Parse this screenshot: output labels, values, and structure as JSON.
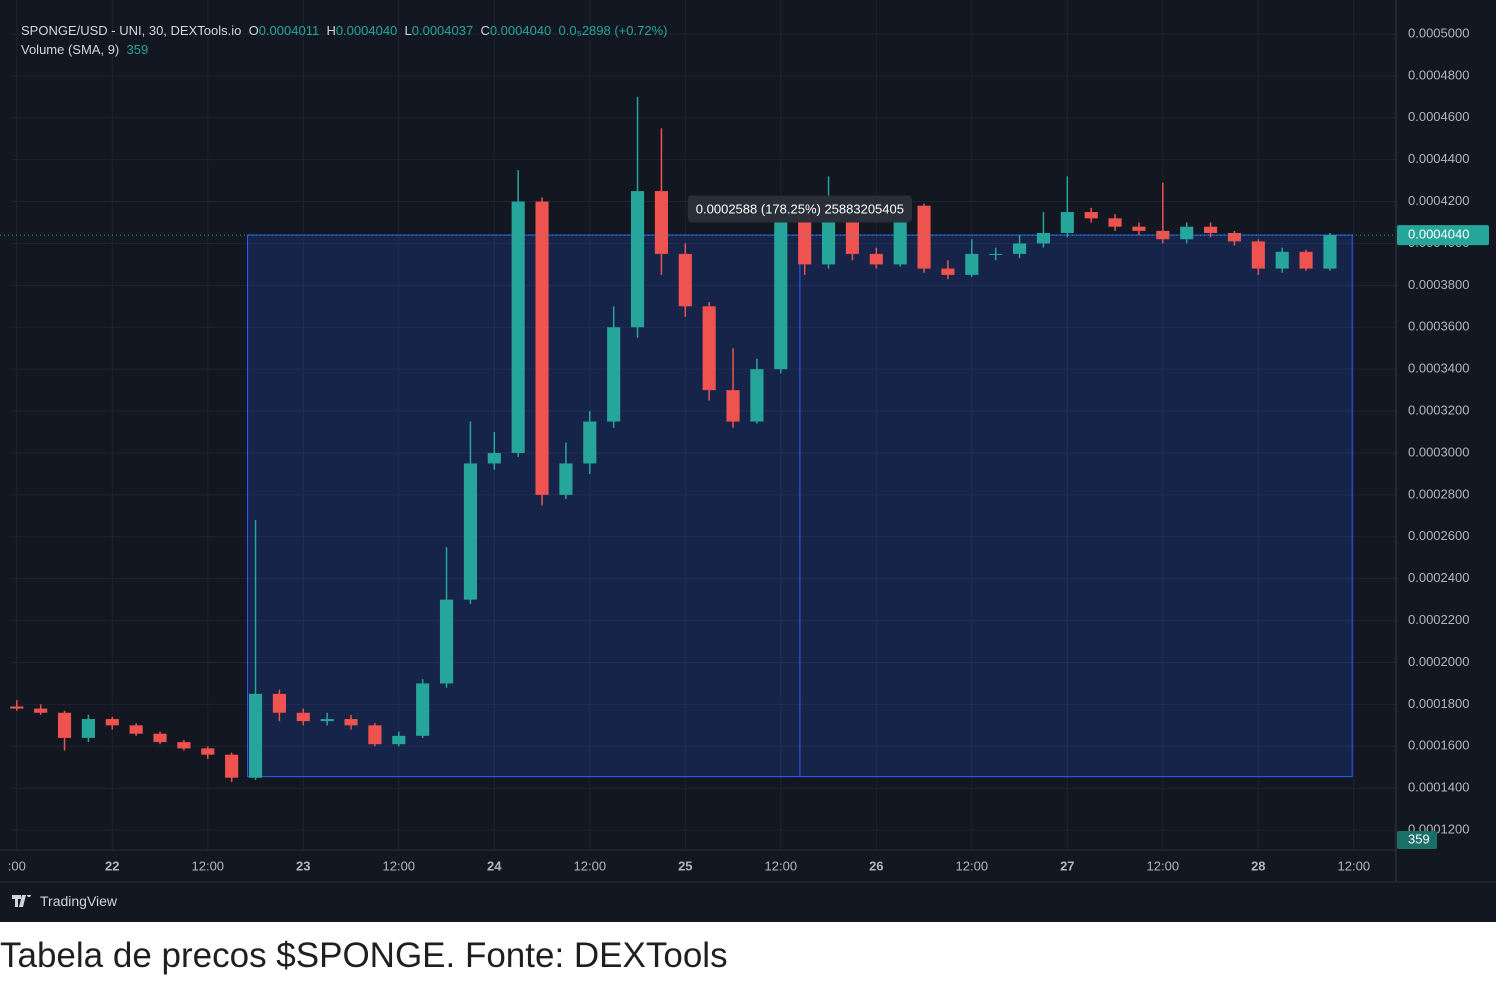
{
  "chart_data": {
    "type": "candlestick",
    "title": "SPONGE/USD - UNI, 30, DEXTools.io",
    "ohlc_labels": [
      {
        "key": "O",
        "value": "0.0004011"
      },
      {
        "key": "H",
        "value": "0.0004040"
      },
      {
        "key": "L",
        "value": "0.0004037"
      },
      {
        "key": "C",
        "value": "0.0004040"
      }
    ],
    "change": "0.0₅2898 (+0.72%)",
    "volume_label": "Volume (SMA, 9)",
    "volume_value": "359",
    "up_color": "#26a69a",
    "down_color": "#ef5350",
    "x": [
      -12,
      -9,
      -6,
      -3,
      0,
      3,
      6,
      9,
      12,
      15,
      18,
      21,
      24,
      27,
      30,
      33,
      36,
      39,
      42,
      45,
      48,
      51,
      54,
      57,
      60,
      63,
      66,
      69,
      72,
      75,
      78,
      81,
      84,
      87,
      90,
      93,
      96,
      99,
      102,
      105,
      108,
      111,
      114,
      117,
      120,
      123,
      126,
      129,
      132,
      135,
      138,
      141,
      144,
      147,
      150,
      153
    ],
    "open": [
      0.000179,
      0.000178,
      0.000176,
      0.000164,
      0.000173,
      0.00017,
      0.000166,
      0.000162,
      0.000159,
      0.000156,
      0.000145,
      0.000185,
      0.000176,
      0.000172,
      0.000173,
      0.00017,
      0.000161,
      0.000165,
      0.00019,
      0.00023,
      0.000295,
      0.0003,
      0.00042,
      0.00028,
      0.000295,
      0.000315,
      0.00036,
      0.000425,
      0.000395,
      0.00037,
      0.00033,
      0.000315,
      0.00034,
      0.000415,
      0.00039,
      0.00042,
      0.000395,
      0.00039,
      0.000418,
      0.000388,
      0.000385,
      0.000395,
      0.000395,
      0.0004,
      0.000405,
      0.000415,
      0.000412,
      0.000408,
      0.000406,
      0.000402,
      0.000408,
      0.000405,
      0.000401,
      0.000388,
      0.000396,
      0.000388
    ],
    "high": [
      0.000182,
      0.00018,
      0.000177,
      0.000175,
      0.000174,
      0.000171,
      0.000167,
      0.000163,
      0.00016,
      0.000157,
      0.000268,
      0.000187,
      0.000178,
      0.000176,
      0.000175,
      0.000171,
      0.000167,
      0.000192,
      0.000255,
      0.000315,
      0.00031,
      0.000435,
      0.000422,
      0.000305,
      0.00032,
      0.00037,
      0.00047,
      0.000455,
      0.0004,
      0.000372,
      0.00035,
      0.000345,
      0.00042,
      0.000418,
      0.000432,
      0.000422,
      0.000398,
      0.00042,
      0.000419,
      0.000392,
      0.000402,
      0.000398,
      0.000404,
      0.000415,
      0.000432,
      0.000417,
      0.000414,
      0.00041,
      0.000429,
      0.00041,
      0.00041,
      0.000406,
      0.000402,
      0.000398,
      0.000397,
      0.000405
    ],
    "low": [
      0.000177,
      0.000175,
      0.000158,
      0.000162,
      0.000168,
      0.000165,
      0.000161,
      0.000158,
      0.000154,
      0.000143,
      0.000144,
      0.000172,
      0.00017,
      0.00017,
      0.000168,
      0.00016,
      0.00016,
      0.000164,
      0.000188,
      0.000228,
      0.000292,
      0.000298,
      0.000275,
      0.000278,
      0.00029,
      0.000312,
      0.000355,
      0.000385,
      0.000365,
      0.000325,
      0.000312,
      0.000314,
      0.000338,
      0.000385,
      0.000388,
      0.000392,
      0.000388,
      0.000389,
      0.000386,
      0.000383,
      0.000384,
      0.000392,
      0.000393,
      0.000398,
      0.000403,
      0.00041,
      0.000406,
      0.000404,
      0.0004,
      0.0004,
      0.000403,
      0.000399,
      0.000385,
      0.000386,
      0.000387,
      0.000387
    ],
    "close": [
      0.000178,
      0.000176,
      0.000164,
      0.000173,
      0.00017,
      0.000166,
      0.000162,
      0.000159,
      0.000156,
      0.000145,
      0.000185,
      0.000176,
      0.000172,
      0.000173,
      0.00017,
      0.000161,
      0.000165,
      0.00019,
      0.00023,
      0.000295,
      0.0003,
      0.00042,
      0.00028,
      0.000295,
      0.000315,
      0.00036,
      0.000425,
      0.000395,
      0.00037,
      0.00033,
      0.000315,
      0.00034,
      0.000415,
      0.00039,
      0.00042,
      0.000395,
      0.00039,
      0.000418,
      0.000388,
      0.000385,
      0.000395,
      0.000395,
      0.0004,
      0.000405,
      0.000415,
      0.000412,
      0.000408,
      0.000406,
      0.000402,
      0.000408,
      0.000405,
      0.000401,
      0.000388,
      0.000396,
      0.000388,
      0.000404
    ],
    "xlim": [
      -12.6,
      161.3
    ],
    "xticks": [
      {
        "value": -12,
        "label": ":00"
      },
      {
        "value": 0,
        "label": "22"
      },
      {
        "value": 12,
        "label": "12:00"
      },
      {
        "value": 24,
        "label": "23"
      },
      {
        "value": 36,
        "label": "12:00"
      },
      {
        "value": 48,
        "label": "24"
      },
      {
        "value": 60,
        "label": "12:00"
      },
      {
        "value": 72,
        "label": "25"
      },
      {
        "value": 84,
        "label": "12:00"
      },
      {
        "value": 96,
        "label": "26"
      },
      {
        "value": 108,
        "label": "12:00"
      },
      {
        "value": 120,
        "label": "27"
      },
      {
        "value": 132,
        "label": "12:00"
      },
      {
        "value": 144,
        "label": "28"
      },
      {
        "value": 156,
        "label": "12:00"
      }
    ],
    "ylim": [
      0.0001105,
      0.0005162
    ],
    "yticks": [
      {
        "value": 0.00012,
        "label": "0.0001200"
      },
      {
        "value": 0.00014,
        "label": "0.0001400"
      },
      {
        "value": 0.00016,
        "label": "0.0001600"
      },
      {
        "value": 0.00018,
        "label": "0.0001800"
      },
      {
        "value": 0.0002,
        "label": "0.0002000"
      },
      {
        "value": 0.00022,
        "label": "0.0002200"
      },
      {
        "value": 0.00024,
        "label": "0.0002400"
      },
      {
        "value": 0.00026,
        "label": "0.0002600"
      },
      {
        "value": 0.00028,
        "label": "0.0002800"
      },
      {
        "value": 0.0003,
        "label": "0.0003000"
      },
      {
        "value": 0.00032,
        "label": "0.0003200"
      },
      {
        "value": 0.00034,
        "label": "0.0003400"
      },
      {
        "value": 0.00036,
        "label": "0.0003600"
      },
      {
        "value": 0.00038,
        "label": "0.0003800"
      },
      {
        "value": 0.0004,
        "label": "0.0004000"
      },
      {
        "value": 0.00042,
        "label": "0.0004200"
      },
      {
        "value": 0.00044,
        "label": "0.0004400"
      },
      {
        "value": 0.00046,
        "label": "0.0004600"
      },
      {
        "value": 0.00048,
        "label": "0.0004800"
      },
      {
        "value": 0.0005,
        "label": "0.0005000"
      }
    ],
    "grid": true,
    "last_price": {
      "value": 0.000404,
      "label": "0.0004040"
    },
    "measure": {
      "x_from": 17,
      "x_to": 155.8,
      "price_from": 0.0001455,
      "price_to": 0.000404,
      "label": "0.0002588 (178.25%) 25883205405"
    }
  },
  "brand": "TradingView",
  "caption": "Tabela de precos $SPONGE. Fonte: DEXTools"
}
